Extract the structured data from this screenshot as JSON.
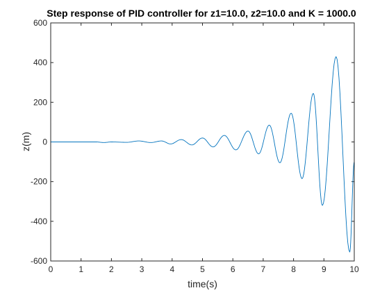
{
  "colors": {
    "background": "#ffffff",
    "axes": "#262626",
    "series": "#0072bd"
  },
  "chart_data": {
    "type": "line",
    "title": "Step response of PID controller for z1=10.0, z2=10.0 and K = 1000.0",
    "xlabel": "time(s)",
    "ylabel": "z(m)",
    "xlim": [
      0,
      10
    ],
    "ylim": [
      -600,
      600
    ],
    "xticks": [
      0,
      1,
      2,
      3,
      4,
      5,
      6,
      7,
      8,
      9,
      10
    ],
    "xtick_labels": [
      "0",
      "1",
      "2",
      "3",
      "4",
      "5",
      "6",
      "7",
      "8",
      "9",
      "10"
    ],
    "yticks": [
      -600,
      -400,
      -200,
      0,
      200,
      400,
      600
    ],
    "ytick_labels": [
      "-600",
      "-400",
      "-200",
      "0",
      "200",
      "400",
      "600"
    ],
    "grid": false,
    "legend": "none",
    "series": [
      {
        "color": "#0072bd",
        "x": [
          0,
          0.5,
          1.0,
          1.5,
          1.75,
          2.0,
          2.5,
          2.9,
          3.3,
          3.65,
          3.95,
          4.3,
          4.65,
          5.0,
          5.35,
          5.72,
          6.1,
          6.5,
          6.85,
          7.2,
          7.55,
          7.92,
          8.28,
          8.65,
          8.95,
          9.4,
          9.85,
          10.0
        ],
        "y": [
          0,
          0,
          0,
          0,
          -3,
          0,
          -2,
          5,
          -3,
          5,
          -10,
          12,
          -15,
          20,
          -25,
          33,
          -40,
          55,
          -60,
          85,
          -105,
          145,
          -185,
          245,
          -320,
          430,
          -555,
          -100
        ]
      }
    ]
  }
}
